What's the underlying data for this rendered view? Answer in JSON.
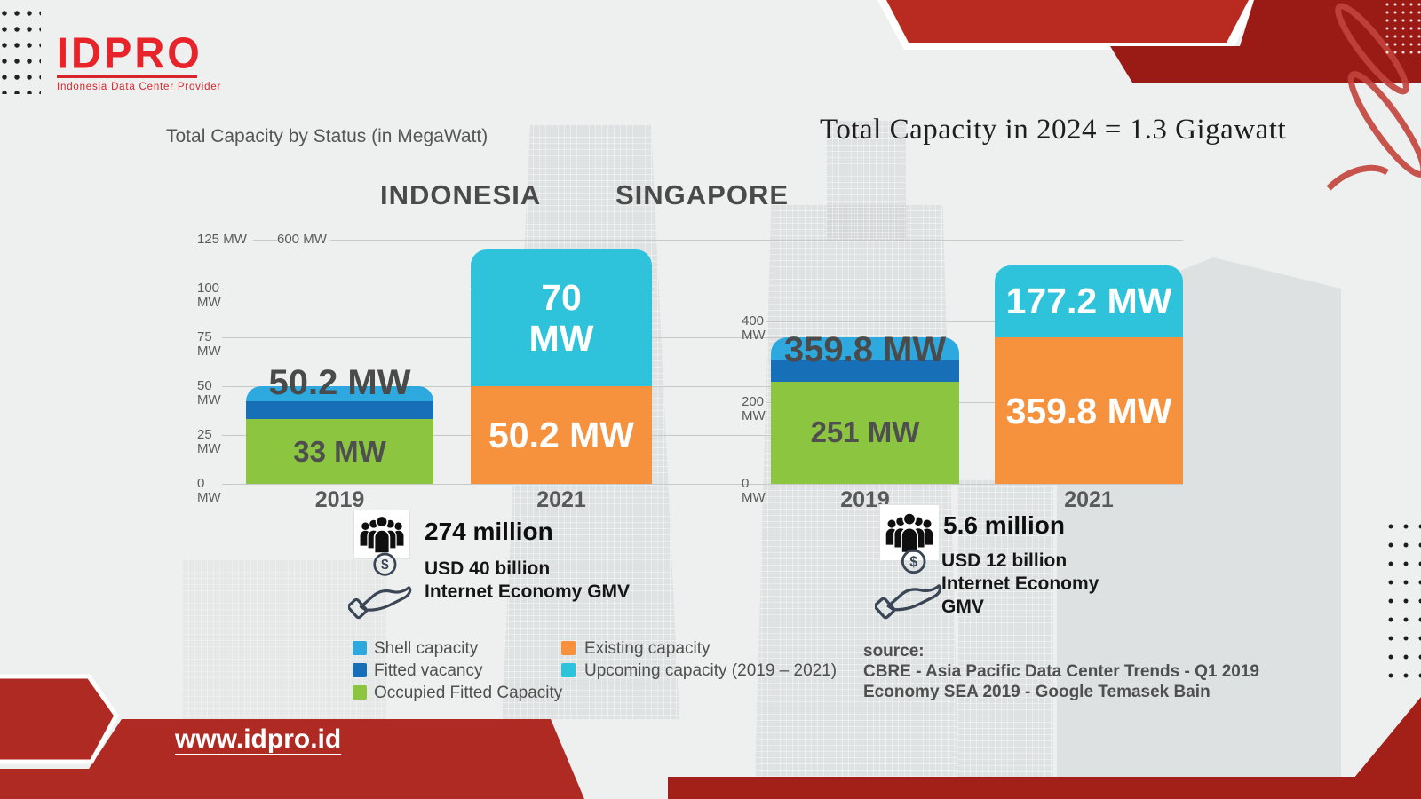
{
  "logo": {
    "text": "IDPRO",
    "caption": "Indonesia Data Center Provider",
    "color": "#E8232A"
  },
  "titles": {
    "chart_title": "Total Capacity by Status (in MegaWatt)",
    "headline": "Total Capacity in 2024 = 1.3 Gigawatt"
  },
  "palette": {
    "shell": "#2EA9E0",
    "fitted": "#176FB8",
    "occupied": "#8CC540",
    "existing": "#F6913D",
    "upcoming": "#2EC3DB",
    "red_bright": "#B92B21",
    "red_dark": "#9A1B16",
    "red_band": "#AF2A22",
    "red_strip": "#A32019"
  },
  "legend": {
    "columns": [
      [
        {
          "key": "shell",
          "label": "Shell capacity"
        },
        {
          "key": "fitted",
          "label": "Fitted vacancy"
        },
        {
          "key": "occupied",
          "label": "Occupied Fitted Capacity"
        }
      ],
      [
        {
          "key": "existing",
          "label": "Existing capacity"
        },
        {
          "key": "upcoming",
          "label": "Upcoming capacity (2019 – 2021)"
        }
      ]
    ]
  },
  "source": {
    "label": "source:",
    "lines": [
      "CBRE - Asia Pacific Data Center Trends - Q1 2019",
      "Economy SEA 2019 - Google Temasek Bain"
    ]
  },
  "stats": {
    "indonesia": {
      "population": "274 million",
      "gmv_lines": [
        "USD 40 billion",
        "Internet Economy GMV",
        ""
      ]
    },
    "singapore": {
      "population": "5.6 million",
      "gmv_lines": [
        "USD 12 billion",
        "Internet Economy",
        "GMV"
      ]
    }
  },
  "footer": {
    "website": "www.idpro.id"
  },
  "chart_data": [
    {
      "type": "bar",
      "stacked": true,
      "country": "INDONESIA",
      "unit": "MW",
      "ylim": [
        0,
        125
      ],
      "grid": true,
      "axis_ticks": [
        {
          "label": "125 MW",
          "mw": 125
        },
        {
          "label": "100 MW",
          "mw": 100
        },
        {
          "label": "75 MW",
          "mw": 75
        },
        {
          "label": "50 MW",
          "mw": 50
        },
        {
          "label": "25 MW",
          "mw": 25
        },
        {
          "label": "0 MW",
          "mw": 0
        }
      ],
      "categories": [
        "2019",
        "2021"
      ],
      "bars": [
        {
          "category": "2019",
          "total_label": "50.2 MW",
          "total_mw": 50.2,
          "segments": [
            {
              "key": "occupied",
              "mw": 33,
              "label": "33 MW",
              "label_style": "dark"
            },
            {
              "key": "fitted",
              "mw": 9.2
            },
            {
              "key": "shell",
              "mw": 8
            }
          ]
        },
        {
          "category": "2021",
          "total_mw": 120.2,
          "segments": [
            {
              "key": "existing",
              "mw": 50.2,
              "label": "50.2 MW",
              "label_style": "light"
            },
            {
              "key": "upcoming",
              "mw": 70,
              "label": "70 MW",
              "label_style": "light",
              "two_line": true
            }
          ]
        }
      ]
    },
    {
      "type": "bar",
      "stacked": true,
      "country": "SINGAPORE",
      "unit": "MW",
      "ylim": [
        0,
        600
      ],
      "grid": true,
      "axis_ticks": [
        {
          "label": "600 MW",
          "mw": 600
        },
        {
          "label": "400 MW",
          "mw": 400
        },
        {
          "label": "200 MW",
          "mw": 200
        },
        {
          "label": "0 MW",
          "mw": 0
        }
      ],
      "categories": [
        "2019",
        "2021"
      ],
      "bars": [
        {
          "category": "2019",
          "total_label": "359.8 MW",
          "total_mw": 359.8,
          "segments": [
            {
              "key": "occupied",
              "mw": 251,
              "label": "251 MW",
              "label_style": "dark"
            },
            {
              "key": "fitted",
              "mw": 55
            },
            {
              "key": "shell",
              "mw": 53.8
            }
          ]
        },
        {
          "category": "2021",
          "total_mw": 537,
          "segments": [
            {
              "key": "existing",
              "mw": 359.8,
              "label": "359.8 MW",
              "label_style": "light"
            },
            {
              "key": "upcoming",
              "mw": 177.2,
              "label": "177.2 MW",
              "label_style": "light"
            }
          ]
        }
      ]
    }
  ]
}
